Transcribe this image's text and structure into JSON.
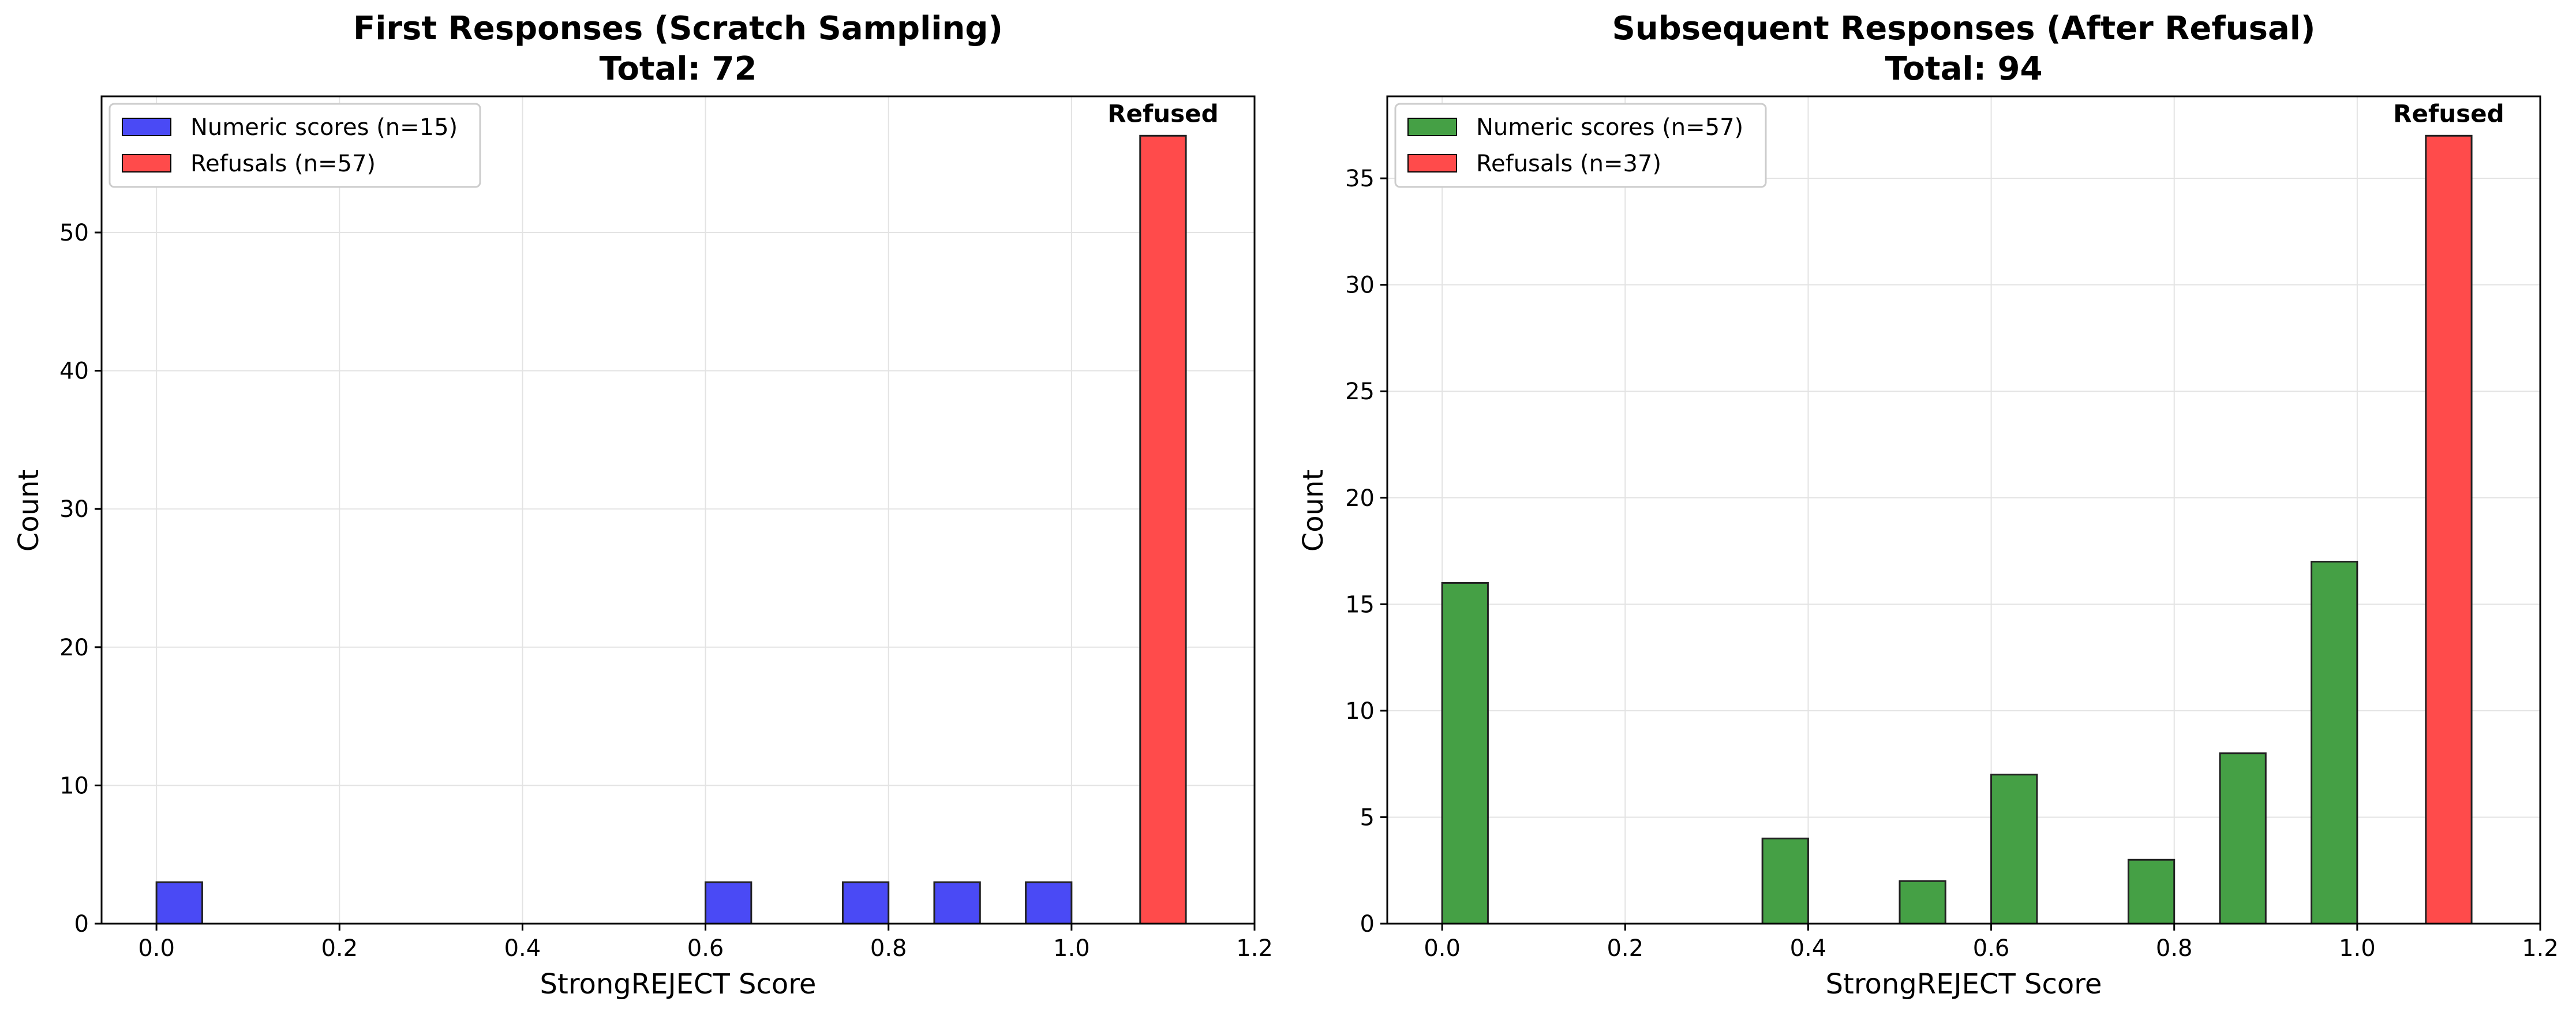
{
  "chart_data": [
    {
      "type": "bar",
      "title": "First Responses (Scratch Sampling)",
      "subtitle": "Total: 72",
      "xlabel": "StrongREJECT Score",
      "ylabel": "Count",
      "xlim": [
        -0.06,
        1.2
      ],
      "ylim": [
        0,
        59.85
      ],
      "xticks": [
        0.0,
        0.2,
        0.4,
        0.6,
        0.8,
        1.0,
        1.2
      ],
      "xtick_labels": [
        "0.0",
        "0.2",
        "0.4",
        "0.6",
        "0.8",
        "1.0",
        "1.2"
      ],
      "yticks": [
        0,
        10,
        20,
        30,
        40,
        50
      ],
      "ytick_labels": [
        "0",
        "10",
        "20",
        "30",
        "40",
        "50"
      ],
      "grid": true,
      "legend_position": "top-left",
      "series": [
        {
          "name": "Numeric scores (n=15)",
          "color": "#4a4af5",
          "bars": [
            {
              "x0": 0.0,
              "x1": 0.05,
              "value": 3
            },
            {
              "x0": 0.6,
              "x1": 0.65,
              "value": 3
            },
            {
              "x0": 0.75,
              "x1": 0.8,
              "value": 3
            },
            {
              "x0": 0.85,
              "x1": 0.9,
              "value": 3
            },
            {
              "x0": 0.95,
              "x1": 1.0,
              "value": 3
            }
          ]
        },
        {
          "name": "Refusals (n=57)",
          "color": "#ff4b4b",
          "bars": [
            {
              "x0": 1.075,
              "x1": 1.125,
              "value": 57
            }
          ]
        }
      ],
      "annotation": {
        "text": "Refused",
        "x": 1.1,
        "y": 57
      }
    },
    {
      "type": "bar",
      "title": "Subsequent Responses (After Refusal)",
      "subtitle": "Total: 94",
      "xlabel": "StrongREJECT Score",
      "ylabel": "Count",
      "xlim": [
        -0.06,
        1.2
      ],
      "ylim": [
        0,
        38.85
      ],
      "xticks": [
        0.0,
        0.2,
        0.4,
        0.6,
        0.8,
        1.0,
        1.2
      ],
      "xtick_labels": [
        "0.0",
        "0.2",
        "0.4",
        "0.6",
        "0.8",
        "1.0",
        "1.2"
      ],
      "yticks": [
        0,
        5,
        10,
        15,
        20,
        25,
        30,
        35
      ],
      "ytick_labels": [
        "0",
        "5",
        "10",
        "15",
        "20",
        "25",
        "30",
        "35"
      ],
      "grid": true,
      "legend_position": "top-left",
      "series": [
        {
          "name": "Numeric scores (n=57)",
          "color": "#45a045",
          "bars": [
            {
              "x0": 0.0,
              "x1": 0.05,
              "value": 16
            },
            {
              "x0": 0.35,
              "x1": 0.4,
              "value": 4
            },
            {
              "x0": 0.5,
              "x1": 0.55,
              "value": 2
            },
            {
              "x0": 0.6,
              "x1": 0.65,
              "value": 7
            },
            {
              "x0": 0.75,
              "x1": 0.8,
              "value": 3
            },
            {
              "x0": 0.85,
              "x1": 0.9,
              "value": 8
            },
            {
              "x0": 0.95,
              "x1": 1.0,
              "value": 17
            }
          ]
        },
        {
          "name": "Refusals (n=37)",
          "color": "#ff4b4b",
          "bars": [
            {
              "x0": 1.075,
              "x1": 1.125,
              "value": 37
            }
          ]
        }
      ],
      "annotation": {
        "text": "Refused",
        "x": 1.1,
        "y": 37
      }
    }
  ]
}
